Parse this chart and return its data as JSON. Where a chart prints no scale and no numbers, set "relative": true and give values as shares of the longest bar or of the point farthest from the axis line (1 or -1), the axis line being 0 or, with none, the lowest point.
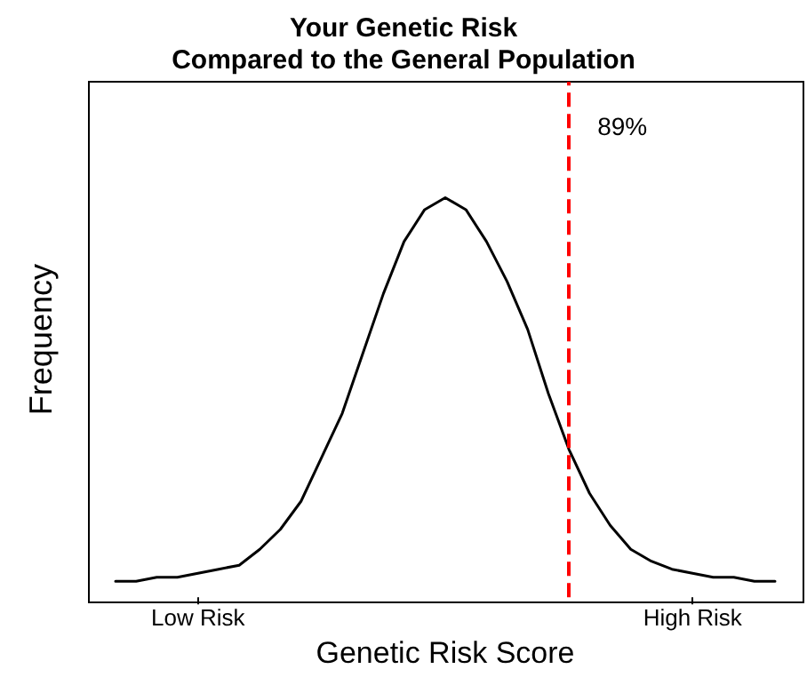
{
  "chart_data": {
    "type": "line",
    "title": "Your Genetic Risk\nCompared to the General Population",
    "xlabel": "Genetic Risk Score",
    "ylabel": "Frequency",
    "relative": true,
    "categories": [
      null,
      null,
      null,
      null,
      "Low Risk",
      null,
      null,
      null,
      null,
      null,
      null,
      null,
      null,
      null,
      null,
      null,
      null,
      null,
      null,
      null,
      null,
      null,
      null,
      null,
      null,
      null,
      null,
      null,
      "High Risk",
      null,
      null,
      null,
      null
    ],
    "series": [
      {
        "color": "#000000",
        "values": [
          0.04,
          0.04,
          0.05,
          0.05,
          0.06,
          0.07,
          0.08,
          0.12,
          0.17,
          0.24,
          0.35,
          0.46,
          0.61,
          0.76,
          0.89,
          0.97,
          1,
          0.97,
          0.89,
          0.79,
          0.67,
          0.51,
          0.37,
          0.26,
          0.18,
          0.12,
          0.09,
          0.07,
          0.06,
          0.05,
          0.05,
          0.04,
          0.04
        ]
      }
    ],
    "annotations": [
      "89%"
    ],
    "grid": false,
    "marker": "none",
    "line_style": "solid"
  }
}
